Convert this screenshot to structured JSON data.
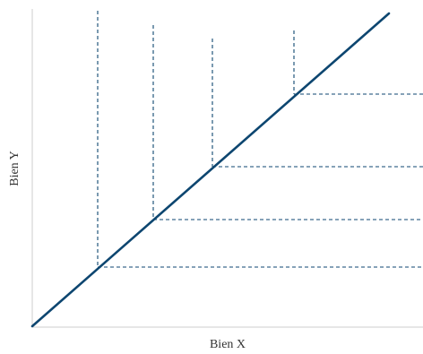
{
  "diagram": {
    "x_axis_label": "Bien X",
    "y_axis_label": "Bien Y",
    "colors": {
      "axis": "#cccccc",
      "line": "#0d4670",
      "guides": "#0d4670",
      "text": "#333333"
    }
  }
}
